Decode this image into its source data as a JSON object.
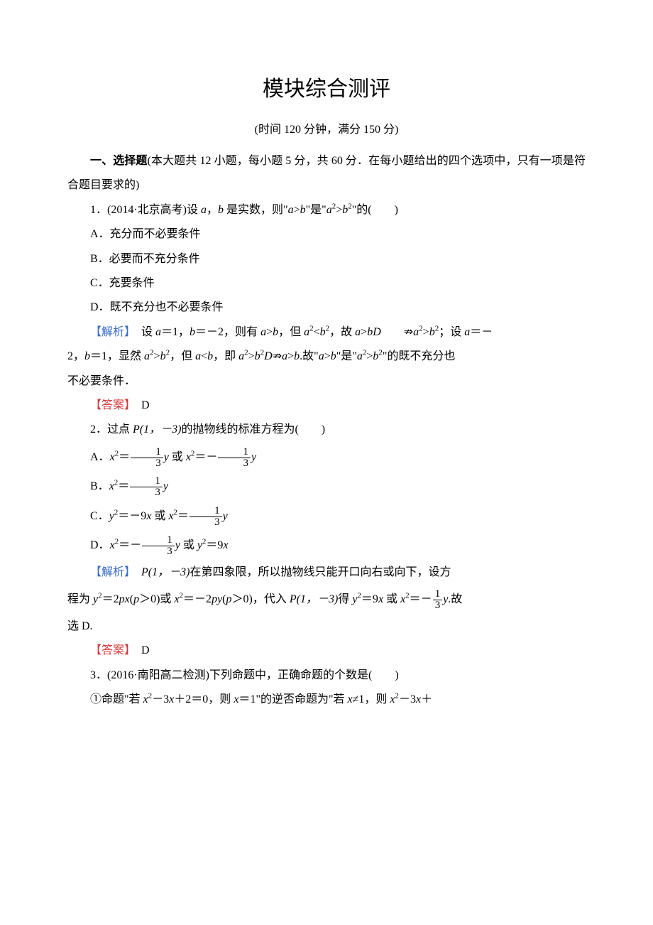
{
  "title": "模块综合测评",
  "subtitle": "(时间 120 分钟，满分 150 分)",
  "section1_label": "一、选择题",
  "section1_desc": "(本大题共 12 小题，每小题 5 分，共 60 分．在每小题给出的四个选项中，只有一项是符合题目要求的)",
  "q1": {
    "num": "1．",
    "source": "(2014·北京高考)",
    "stem_pre": "设 ",
    "stem_mid": "，",
    "stem_post": " 是实数，则",
    "quote1": "\"a>b\"",
    "is_word": "是",
    "quote2": "\"a²>b²\"",
    "de": "的(　　)",
    "optA": "A．充分而不必要条件",
    "optB": "B．必要而不充分条件",
    "optC": "C．充要条件",
    "optD": "D．既不充分也不必要条件",
    "analysis_label": "【解析】",
    "analysis_text_1": "　设 ",
    "analysis_text_2": "＝1，",
    "analysis_text_3": "＝－2，则有 ",
    "analysis_text_4": "，但 ",
    "analysis_text_5": "，故 ",
    "analysis_text_6": "；设 ",
    "analysis_text_7": "＝－",
    "analysis_line2_1": "2，",
    "analysis_line2_2": "＝1，显然 ",
    "analysis_line2_3": "，但 ",
    "analysis_line2_4": "，即 ",
    "analysis_line2_5": "故",
    "analysis_line2_6": "是",
    "analysis_line2_7": "的既不充分也",
    "analysis_line3": "不必要条件．",
    "answer_label": "【答案】",
    "answer": "D"
  },
  "q2": {
    "num": "2．",
    "stem_pre": "过点 ",
    "point": "P(1，－3)",
    "stem_post": "的抛物线的标准方程为(　　)",
    "analysis_label": "【解析】",
    "analysis_p1": "　",
    "analysis_p2": "P(1，－3)",
    "analysis_p3": "在第四象限，所以抛物线只能开口向右或向下，设方",
    "analysis_line2_1": "程为 ",
    "analysis_line2_2": "或 ",
    "analysis_line2_3": "，代入 ",
    "analysis_line2_4": "P(1，－3)",
    "analysis_line2_5": "得 ",
    "analysis_line2_6": " 或 ",
    "analysis_line2_7": "故",
    "analysis_line3": "选 D.",
    "answer_label": "【答案】",
    "answer": "D"
  },
  "q3": {
    "num": "3．",
    "source": "(2016·南阳高二检测)",
    "stem": "下列命题中，正确命题的个数是(　　)",
    "item1_pre": "①命题\"若 ",
    "item1_mid": "，则 ",
    "item1_post": "\"的逆否命题为\"若 ",
    "item1_end": "，则 "
  },
  "vars": {
    "a": "a",
    "b": "b",
    "x": "x",
    "y": "y",
    "p": "p"
  }
}
